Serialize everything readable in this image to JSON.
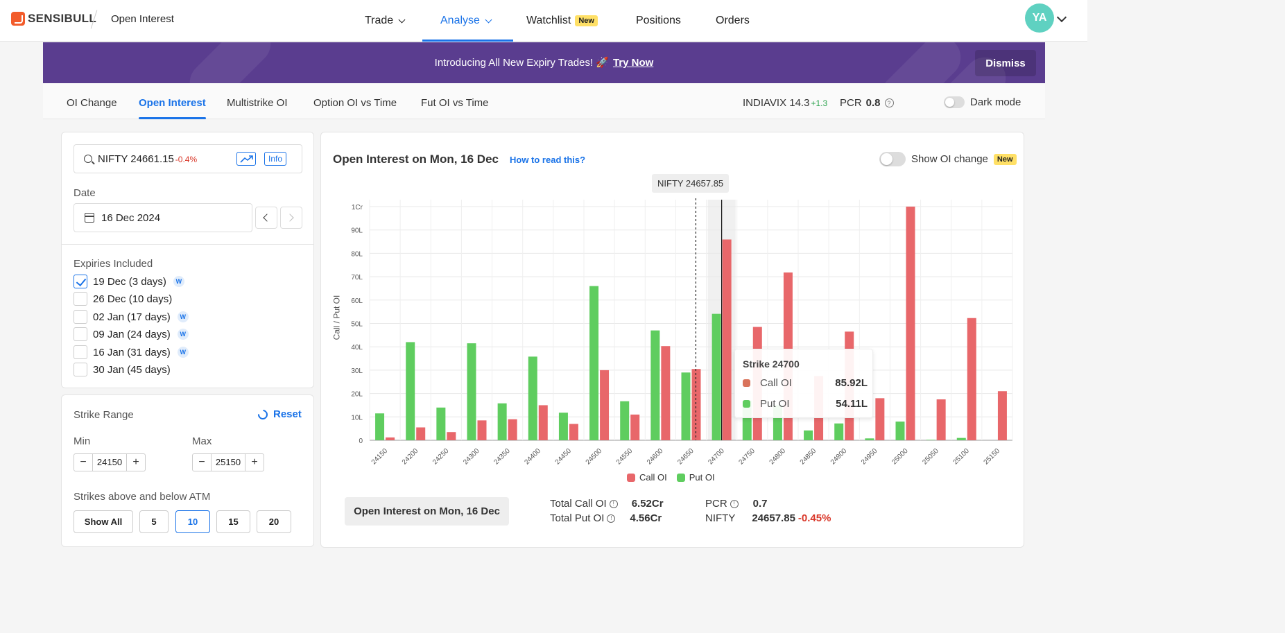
{
  "header": {
    "brand": "SENSIBULL",
    "page": "Open Interest",
    "nav": [
      {
        "label": "Trade",
        "dropdown": true
      },
      {
        "label": "Analyse",
        "dropdown": true,
        "active": true
      },
      {
        "label": "Watchlist",
        "badge": "New"
      },
      {
        "label": "Positions"
      },
      {
        "label": "Orders"
      }
    ],
    "avatar": "YA"
  },
  "banner": {
    "text": "Introducing All New Expiry Trades! 🚀",
    "cta": "Try Now",
    "dismiss": "Dismiss",
    "color": "#5a3d8f"
  },
  "tabs": {
    "items": [
      "OI Change",
      "Open Interest",
      "Multistrike OI",
      "Option OI vs Time",
      "Fut OI vs Time"
    ],
    "active": "Open Interest",
    "indiavix_label": "INDIAVIX",
    "indiavix_value": "14.3",
    "indiavix_change": "+1.3",
    "pcr_label": "PCR",
    "pcr_value": "0.8",
    "dark_mode": "Dark mode"
  },
  "filters": {
    "symbol": "NIFTY 24661.15",
    "symbol_change": "-0.4%",
    "info": "Info",
    "date_label": "Date",
    "date_value": "16 Dec 2024",
    "expiries_label": "Expiries Included",
    "expiries": [
      {
        "label": "19 Dec (3 days)",
        "checked": true,
        "weekly": true
      },
      {
        "label": "26 Dec (10 days)",
        "checked": false,
        "weekly": false
      },
      {
        "label": "02 Jan (17 days)",
        "checked": false,
        "weekly": true
      },
      {
        "label": "09 Jan (24 days)",
        "checked": false,
        "weekly": true
      },
      {
        "label": "16 Jan (31 days)",
        "checked": false,
        "weekly": true
      },
      {
        "label": "30 Jan (45 days)",
        "checked": false,
        "weekly": false
      }
    ],
    "weekly_badge": "W",
    "strike_range_label": "Strike Range",
    "reset": "Reset",
    "min_label": "Min",
    "min_value": "24150",
    "max_label": "Max",
    "max_value": "25150",
    "atm_label": "Strikes above and below ATM",
    "atm_options": [
      "Show All",
      "5",
      "10",
      "15",
      "20"
    ],
    "atm_selected": "10"
  },
  "chart_panel": {
    "title": "Open Interest on Mon, 16 Dec",
    "how_to": "How to read this?",
    "oi_change_toggle": "Show OI change",
    "oi_change_badge": "New",
    "spot_label": "NIFTY 24657.85",
    "ylabel": "Call / Put OI",
    "tooltip": {
      "title": "Strike 24700",
      "call_label": "Call OI",
      "call_value": "85.92L",
      "put_label": "Put OI",
      "put_value": "54.11L"
    },
    "legend_call": "Call OI",
    "legend_put": "Put OI",
    "bottom_chip": "Open Interest on Mon, 16 Dec",
    "total_call_label": "Total Call OI",
    "total_call_value": "6.52Cr",
    "total_put_label": "Total Put OI",
    "total_put_value": "4.56Cr",
    "pcr_label": "PCR",
    "pcr_value": "0.7",
    "nifty_label": "NIFTY",
    "nifty_value": "24657.85",
    "nifty_change": "-0.45%"
  },
  "chart_data": {
    "type": "bar",
    "ylabel": "Call / Put OI",
    "y_ticks": [
      "0",
      "10L",
      "20L",
      "30L",
      "40L",
      "50L",
      "60L",
      "70L",
      "80L",
      "90L",
      "1Cr"
    ],
    "ylim": [
      0,
      100
    ],
    "categories": [
      "24150",
      "24200",
      "24250",
      "24300",
      "24350",
      "24400",
      "24450",
      "24500",
      "24550",
      "24600",
      "24650",
      "24700",
      "24750",
      "24800",
      "24850",
      "24900",
      "24950",
      "25000",
      "25050",
      "25100",
      "25150"
    ],
    "series": [
      {
        "name": "Put OI",
        "color": "#5fcd5f",
        "values": [
          11.5,
          42,
          14,
          41.5,
          15.8,
          35.8,
          11.8,
          66,
          16.7,
          47,
          29,
          54.11,
          17,
          15,
          4.2,
          7.2,
          0.8,
          8,
          0.2,
          1,
          0
        ]
      },
      {
        "name": "Call OI",
        "color": "#e8676a",
        "values": [
          1.2,
          5.5,
          3.5,
          8.5,
          9,
          15,
          7,
          30,
          11,
          40.3,
          30.5,
          85.92,
          48.5,
          71.8,
          27.5,
          46.5,
          18,
          103,
          17.5,
          52.3,
          21
        ]
      }
    ],
    "spot": 24657.85,
    "highlight": "24700"
  }
}
